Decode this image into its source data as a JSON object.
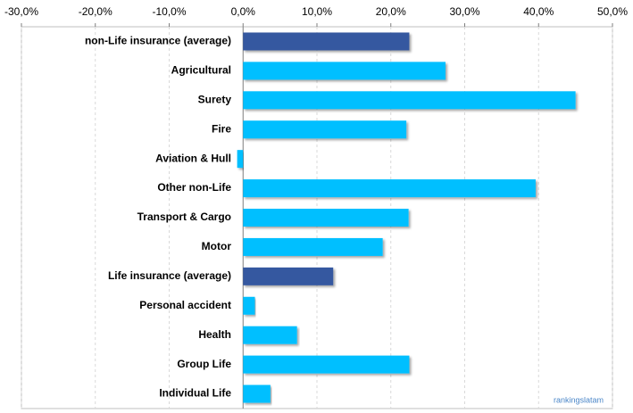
{
  "chart_data": {
    "type": "bar",
    "orientation": "horizontal",
    "categories": [
      "non-Life insurance (average)",
      "Agricultural",
      "Surety",
      "Fire",
      "Aviation & Hull",
      "Other non-Life",
      "Transport & Cargo",
      "Motor",
      "Life insurance (average)",
      "Personal accident",
      "Health",
      "Group Life",
      "Individual Life"
    ],
    "values": [
      22.5,
      27.4,
      45.0,
      22.1,
      -0.8,
      39.6,
      22.4,
      18.9,
      12.2,
      1.6,
      7.3,
      22.5,
      3.7
    ],
    "colors": [
      "#3558a0",
      "#00bfff",
      "#00bfff",
      "#00bfff",
      "#00bfff",
      "#00bfff",
      "#00bfff",
      "#00bfff",
      "#3558a0",
      "#00bfff",
      "#00bfff",
      "#00bfff",
      "#00bfff"
    ],
    "xlim": [
      -30,
      50
    ],
    "xticks": [
      {
        "value": -30,
        "label": "-30,0%"
      },
      {
        "value": -20,
        "label": "-20,0%"
      },
      {
        "value": -10,
        "label": "-10,0%"
      },
      {
        "value": 0,
        "label": "0,0%"
      },
      {
        "value": 10,
        "label": "10,0%"
      },
      {
        "value": 20,
        "label": "20,0%"
      },
      {
        "value": 30,
        "label": "30,0%"
      },
      {
        "value": 40,
        "label": "40,0%"
      },
      {
        "value": 50,
        "label": "50,0%"
      }
    ],
    "grid": true,
    "watermark": "rankingslatam"
  }
}
